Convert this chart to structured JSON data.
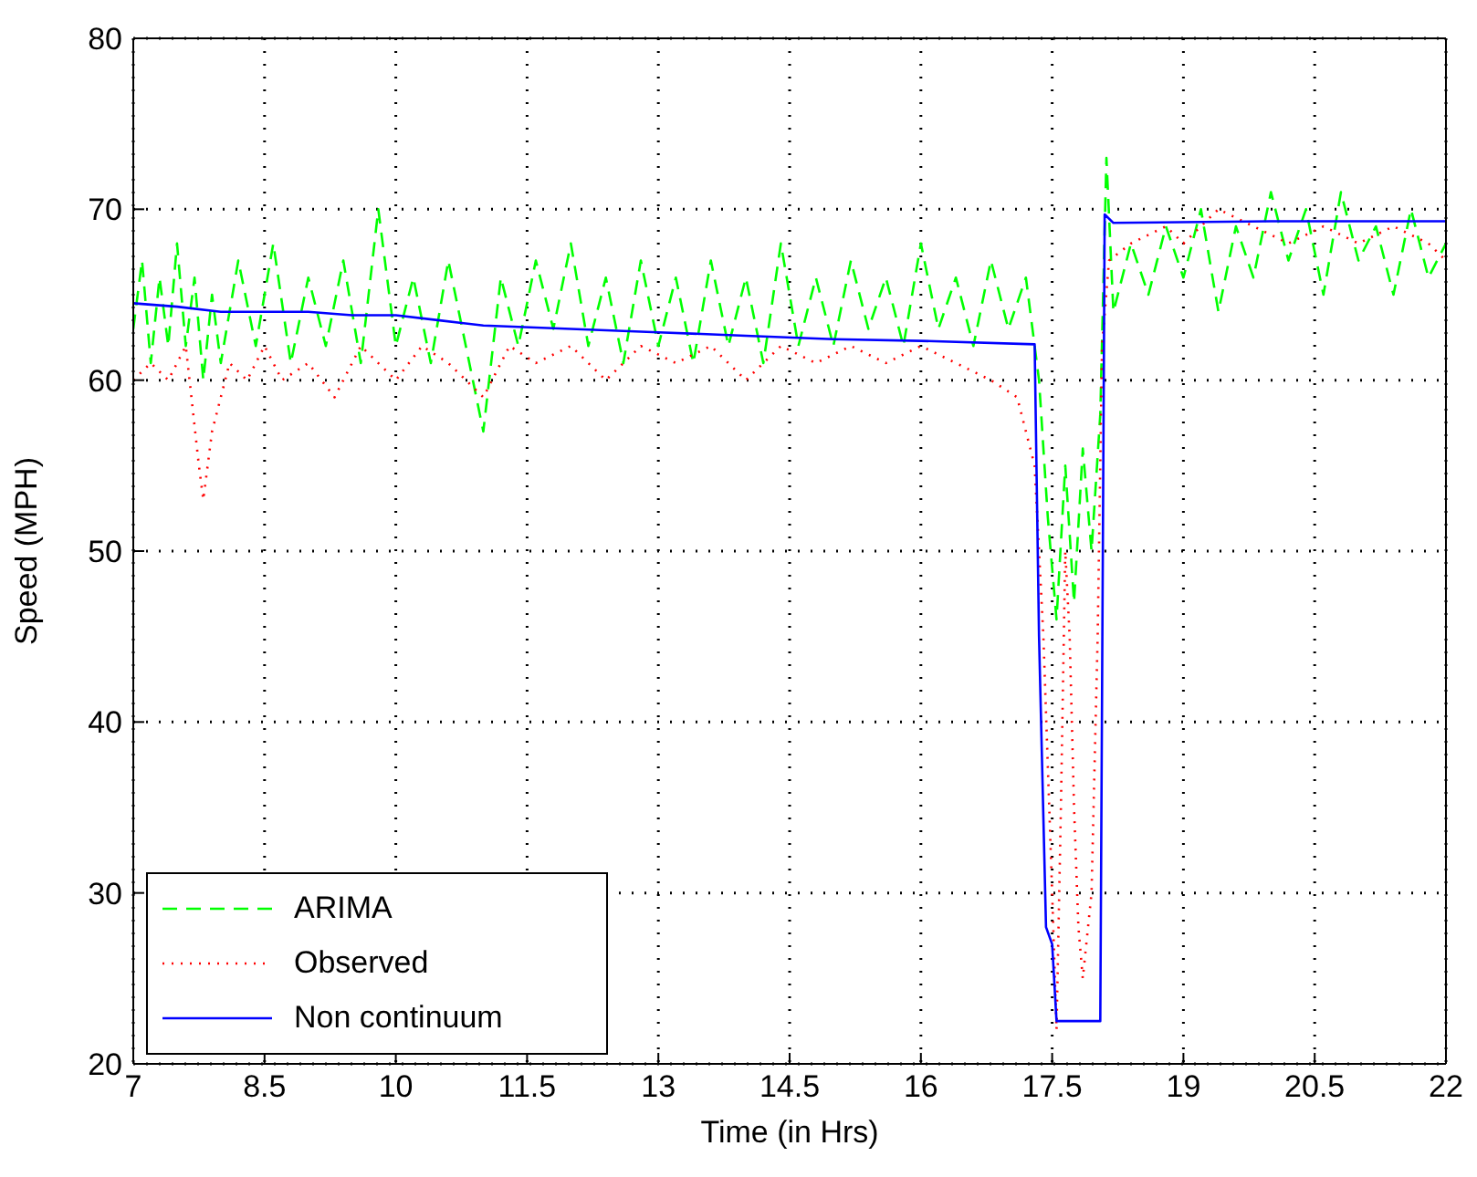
{
  "chart_data": {
    "type": "line",
    "xlabel": "Time (in Hrs)",
    "ylabel": "Speed (MPH)",
    "xlim": [
      7,
      22
    ],
    "xticks": [
      7,
      8.5,
      10,
      11.5,
      13,
      14.5,
      16,
      17.5,
      19,
      20.5,
      22
    ],
    "ylim": [
      20,
      80
    ],
    "yticks": [
      20,
      30,
      40,
      50,
      60,
      70,
      80
    ],
    "grid": true,
    "legend": "bottom left",
    "series": [
      {
        "name": "ARIMA",
        "color": "#00ff00",
        "line_style": "dashed",
        "x": [
          7,
          7.1,
          7.2,
          7.3,
          7.4,
          7.5,
          7.6,
          7.7,
          7.8,
          7.9,
          8,
          8.2,
          8.4,
          8.6,
          8.8,
          9,
          9.2,
          9.4,
          9.6,
          9.8,
          10,
          10.2,
          10.4,
          10.6,
          10.8,
          11,
          11.2,
          11.4,
          11.6,
          11.8,
          12,
          12.2,
          12.4,
          12.6,
          12.8,
          13,
          13.2,
          13.4,
          13.6,
          13.8,
          14,
          14.2,
          14.4,
          14.6,
          14.8,
          15,
          15.2,
          15.4,
          15.6,
          15.8,
          16,
          16.2,
          16.4,
          16.6,
          16.8,
          17,
          17.2,
          17.35,
          17.45,
          17.55,
          17.65,
          17.75,
          17.85,
          17.95,
          18.05,
          18.12,
          18.2,
          18.4,
          18.6,
          18.8,
          19,
          19.2,
          19.4,
          19.6,
          19.8,
          20,
          20.2,
          20.4,
          20.6,
          20.8,
          21,
          21.2,
          21.4,
          21.6,
          21.8,
          22
        ],
        "values": [
          63,
          67,
          61,
          66,
          62,
          68,
          62,
          66,
          60,
          65,
          61,
          67,
          62,
          68,
          61,
          66,
          62,
          67,
          61,
          70,
          62,
          66,
          61,
          67,
          62,
          57,
          66,
          62,
          67,
          63,
          68,
          62,
          66,
          61,
          67,
          62,
          66,
          61,
          67,
          62,
          66,
          61,
          68,
          62,
          66,
          62,
          67,
          63,
          66,
          62,
          68,
          63,
          66,
          62,
          67,
          63,
          66,
          60,
          52,
          46,
          55,
          47,
          56,
          50,
          58,
          73,
          64,
          68,
          65,
          69,
          66,
          70,
          64,
          69,
          66,
          71,
          67,
          70,
          65,
          71,
          67,
          69,
          65,
          70,
          66,
          68
        ]
      },
      {
        "name": "Observed",
        "color": "#ff0000",
        "line_style": "dotted",
        "x": [
          7,
          7.2,
          7.4,
          7.6,
          7.75,
          7.8,
          7.9,
          8.1,
          8.3,
          8.5,
          8.7,
          9,
          9.3,
          9.6,
          10,
          10.3,
          10.6,
          11,
          11.3,
          11.6,
          12,
          12.4,
          12.8,
          13.2,
          13.6,
          14,
          14.4,
          14.8,
          15.2,
          15.6,
          16,
          16.4,
          16.8,
          17.1,
          17.3,
          17.4,
          17.5,
          17.55,
          17.6,
          17.65,
          17.7,
          17.75,
          17.8,
          17.85,
          17.95,
          18.02,
          18.07,
          18.15,
          18.4,
          18.8,
          19,
          19.4,
          19.8,
          20.2,
          20.6,
          21,
          21.4,
          21.8,
          22
        ],
        "values": [
          60,
          61,
          60,
          62,
          55,
          53,
          57,
          61,
          60,
          62,
          60,
          61,
          59,
          62,
          60,
          62,
          61,
          59,
          62,
          61,
          62,
          60,
          62,
          61,
          62,
          60,
          62,
          61,
          62,
          61,
          62,
          61,
          60,
          59,
          55,
          45,
          30,
          22,
          35,
          50,
          45,
          35,
          28,
          25,
          30,
          45,
          62,
          67,
          68,
          69,
          68,
          70,
          69,
          68,
          69,
          68,
          69,
          68,
          67
        ]
      },
      {
        "name": "Non continuum",
        "color": "#0000ff",
        "line_style": "solid",
        "x": [
          7,
          7.5,
          8,
          8.5,
          9,
          9.5,
          10,
          10.5,
          11,
          12,
          13,
          14,
          15,
          16,
          17.3,
          17.35,
          17.43,
          17.5,
          17.55,
          18.05,
          18.1,
          18.2,
          20,
          22
        ],
        "values": [
          64.5,
          64.3,
          64,
          64,
          64,
          63.8,
          63.8,
          63.5,
          63.2,
          63,
          62.8,
          62.6,
          62.4,
          62.3,
          62.1,
          45,
          28,
          27,
          22.5,
          22.5,
          69.7,
          69.2,
          69.3,
          69.3
        ]
      }
    ]
  }
}
